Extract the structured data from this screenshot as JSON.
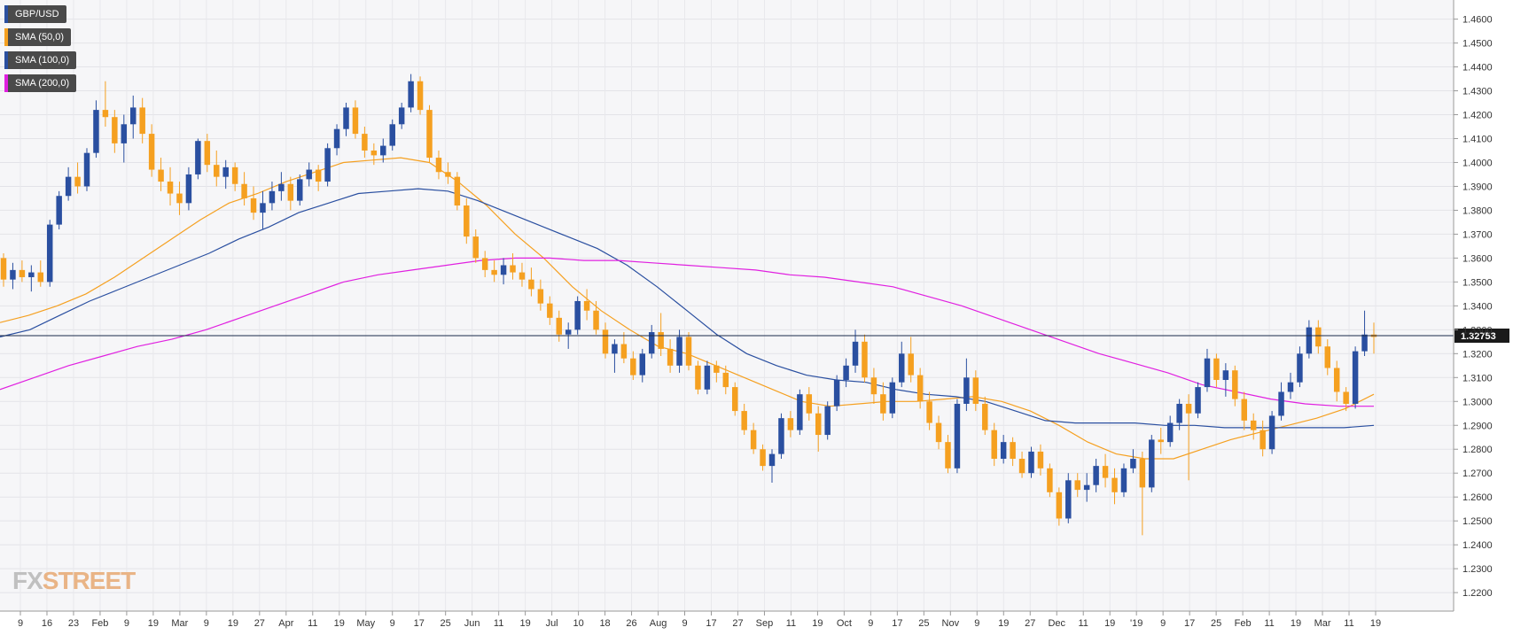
{
  "watermark": {
    "fx": "FX",
    "street": "STREET"
  },
  "legend": [
    {
      "label": "GBP/USD",
      "color": "#2a4fa0"
    },
    {
      "label": "SMA (50,0)",
      "color": "#f5a020"
    },
    {
      "label": "SMA (100,0)",
      "color": "#2a4fa0"
    },
    {
      "label": "SMA (200,0)",
      "color": "#e020e0"
    }
  ],
  "chart_data": {
    "type": "candlestick",
    "series": [
      {
        "name": "GBP/USD",
        "ohlc": [
          [
            1.36,
            1.362,
            1.348,
            1.351
          ],
          [
            1.351,
            1.358,
            1.347,
            1.355
          ],
          [
            1.355,
            1.359,
            1.35,
            1.352
          ],
          [
            1.352,
            1.357,
            1.346,
            1.354
          ],
          [
            1.354,
            1.359,
            1.348,
            1.35
          ],
          [
            1.35,
            1.376,
            1.348,
            1.374
          ],
          [
            1.374,
            1.388,
            1.372,
            1.386
          ],
          [
            1.386,
            1.398,
            1.384,
            1.394
          ],
          [
            1.394,
            1.4,
            1.387,
            1.39
          ],
          [
            1.39,
            1.406,
            1.388,
            1.404
          ],
          [
            1.404,
            1.426,
            1.402,
            1.422
          ],
          [
            1.422,
            1.434,
            1.415,
            1.419
          ],
          [
            1.419,
            1.422,
            1.404,
            1.408
          ],
          [
            1.408,
            1.42,
            1.4,
            1.416
          ],
          [
            1.416,
            1.428,
            1.41,
            1.423
          ],
          [
            1.423,
            1.427,
            1.408,
            1.412
          ],
          [
            1.412,
            1.416,
            1.394,
            1.397
          ],
          [
            1.397,
            1.402,
            1.388,
            1.392
          ],
          [
            1.392,
            1.398,
            1.382,
            1.387
          ],
          [
            1.387,
            1.392,
            1.378,
            1.383
          ],
          [
            1.383,
            1.398,
            1.38,
            1.395
          ],
          [
            1.395,
            1.41,
            1.393,
            1.409
          ],
          [
            1.409,
            1.412,
            1.396,
            1.399
          ],
          [
            1.399,
            1.405,
            1.39,
            1.394
          ],
          [
            1.394,
            1.401,
            1.389,
            1.398
          ],
          [
            1.398,
            1.4,
            1.388,
            1.391
          ],
          [
            1.391,
            1.396,
            1.382,
            1.385
          ],
          [
            1.385,
            1.39,
            1.376,
            1.379
          ],
          [
            1.379,
            1.388,
            1.372,
            1.383
          ],
          [
            1.383,
            1.392,
            1.38,
            1.388
          ],
          [
            1.388,
            1.396,
            1.384,
            1.391
          ],
          [
            1.391,
            1.394,
            1.38,
            1.384
          ],
          [
            1.384,
            1.395,
            1.382,
            1.393
          ],
          [
            1.393,
            1.4,
            1.39,
            1.397
          ],
          [
            1.397,
            1.399,
            1.388,
            1.392
          ],
          [
            1.392,
            1.408,
            1.39,
            1.406
          ],
          [
            1.406,
            1.416,
            1.403,
            1.414
          ],
          [
            1.414,
            1.425,
            1.411,
            1.423
          ],
          [
            1.423,
            1.426,
            1.41,
            1.412
          ],
          [
            1.412,
            1.415,
            1.402,
            1.405
          ],
          [
            1.405,
            1.408,
            1.399,
            1.403
          ],
          [
            1.403,
            1.41,
            1.4,
            1.407
          ],
          [
            1.407,
            1.418,
            1.405,
            1.416
          ],
          [
            1.416,
            1.425,
            1.414,
            1.423
          ],
          [
            1.423,
            1.437,
            1.421,
            1.434
          ],
          [
            1.434,
            1.436,
            1.42,
            1.422
          ],
          [
            1.422,
            1.424,
            1.4,
            1.402
          ],
          [
            1.402,
            1.405,
            1.393,
            1.396
          ],
          [
            1.396,
            1.4,
            1.391,
            1.394
          ],
          [
            1.394,
            1.396,
            1.38,
            1.382
          ],
          [
            1.382,
            1.385,
            1.366,
            1.369
          ],
          [
            1.369,
            1.372,
            1.358,
            1.36
          ],
          [
            1.36,
            1.363,
            1.352,
            1.355
          ],
          [
            1.355,
            1.359,
            1.35,
            1.353
          ],
          [
            1.353,
            1.36,
            1.349,
            1.357
          ],
          [
            1.357,
            1.362,
            1.351,
            1.354
          ],
          [
            1.354,
            1.358,
            1.348,
            1.351
          ],
          [
            1.351,
            1.356,
            1.344,
            1.347
          ],
          [
            1.347,
            1.351,
            1.338,
            1.341
          ],
          [
            1.341,
            1.344,
            1.332,
            1.335
          ],
          [
            1.335,
            1.338,
            1.325,
            1.328
          ],
          [
            1.328,
            1.333,
            1.322,
            1.33
          ],
          [
            1.33,
            1.344,
            1.328,
            1.342
          ],
          [
            1.342,
            1.347,
            1.334,
            1.338
          ],
          [
            1.338,
            1.342,
            1.328,
            1.33
          ],
          [
            1.33,
            1.333,
            1.318,
            1.32
          ],
          [
            1.32,
            1.326,
            1.312,
            1.324
          ],
          [
            1.324,
            1.329,
            1.316,
            1.318
          ],
          [
            1.318,
            1.321,
            1.309,
            1.311
          ],
          [
            1.311,
            1.322,
            1.308,
            1.32
          ],
          [
            1.32,
            1.332,
            1.318,
            1.329
          ],
          [
            1.329,
            1.337,
            1.319,
            1.322
          ],
          [
            1.322,
            1.326,
            1.312,
            1.315
          ],
          [
            1.315,
            1.33,
            1.312,
            1.327
          ],
          [
            1.327,
            1.329,
            1.313,
            1.315
          ],
          [
            1.315,
            1.317,
            1.303,
            1.305
          ],
          [
            1.305,
            1.317,
            1.303,
            1.315
          ],
          [
            1.315,
            1.317,
            1.308,
            1.312
          ],
          [
            1.312,
            1.315,
            1.303,
            1.306
          ],
          [
            1.306,
            1.308,
            1.294,
            1.296
          ],
          [
            1.296,
            1.299,
            1.286,
            1.288
          ],
          [
            1.288,
            1.291,
            1.278,
            1.28
          ],
          [
            1.28,
            1.282,
            1.271,
            1.273
          ],
          [
            1.273,
            1.28,
            1.266,
            1.278
          ],
          [
            1.278,
            1.295,
            1.276,
            1.293
          ],
          [
            1.293,
            1.296,
            1.285,
            1.288
          ],
          [
            1.288,
            1.305,
            1.286,
            1.303
          ],
          [
            1.303,
            1.306,
            1.292,
            1.295
          ],
          [
            1.295,
            1.298,
            1.279,
            1.286
          ],
          [
            1.286,
            1.3,
            1.284,
            1.298
          ],
          [
            1.298,
            1.311,
            1.296,
            1.309
          ],
          [
            1.309,
            1.318,
            1.306,
            1.315
          ],
          [
            1.315,
            1.33,
            1.312,
            1.325
          ],
          [
            1.325,
            1.328,
            1.308,
            1.31
          ],
          [
            1.31,
            1.314,
            1.299,
            1.303
          ],
          [
            1.303,
            1.308,
            1.292,
            1.295
          ],
          [
            1.295,
            1.31,
            1.293,
            1.308
          ],
          [
            1.308,
            1.325,
            1.306,
            1.32
          ],
          [
            1.32,
            1.327,
            1.308,
            1.311
          ],
          [
            1.311,
            1.314,
            1.297,
            1.3
          ],
          [
            1.3,
            1.304,
            1.288,
            1.291
          ],
          [
            1.291,
            1.294,
            1.28,
            1.283
          ],
          [
            1.283,
            1.286,
            1.27,
            1.272
          ],
          [
            1.272,
            1.301,
            1.27,
            1.299
          ],
          [
            1.299,
            1.318,
            1.296,
            1.31
          ],
          [
            1.31,
            1.313,
            1.296,
            1.299
          ],
          [
            1.299,
            1.302,
            1.286,
            1.288
          ],
          [
            1.288,
            1.291,
            1.273,
            1.276
          ],
          [
            1.276,
            1.286,
            1.274,
            1.283
          ],
          [
            1.283,
            1.285,
            1.273,
            1.276
          ],
          [
            1.276,
            1.279,
            1.268,
            1.27
          ],
          [
            1.27,
            1.281,
            1.268,
            1.279
          ],
          [
            1.279,
            1.282,
            1.269,
            1.272
          ],
          [
            1.272,
            1.274,
            1.26,
            1.262
          ],
          [
            1.262,
            1.264,
            1.248,
            1.251
          ],
          [
            1.251,
            1.27,
            1.249,
            1.267
          ],
          [
            1.267,
            1.27,
            1.26,
            1.263
          ],
          [
            1.263,
            1.27,
            1.258,
            1.265
          ],
          [
            1.265,
            1.276,
            1.262,
            1.273
          ],
          [
            1.273,
            1.278,
            1.264,
            1.268
          ],
          [
            1.268,
            1.272,
            1.257,
            1.262
          ],
          [
            1.262,
            1.274,
            1.26,
            1.272
          ],
          [
            1.272,
            1.28,
            1.27,
            1.276
          ],
          [
            1.276,
            1.279,
            1.244,
            1.264
          ],
          [
            1.264,
            1.286,
            1.262,
            1.284
          ],
          [
            1.284,
            1.289,
            1.278,
            1.283
          ],
          [
            1.283,
            1.294,
            1.281,
            1.291
          ],
          [
            1.291,
            1.301,
            1.288,
            1.299
          ],
          [
            1.299,
            1.303,
            1.267,
            1.295
          ],
          [
            1.295,
            1.308,
            1.293,
            1.306
          ],
          [
            1.306,
            1.322,
            1.304,
            1.318
          ],
          [
            1.318,
            1.32,
            1.306,
            1.309
          ],
          [
            1.309,
            1.316,
            1.302,
            1.313
          ],
          [
            1.313,
            1.315,
            1.298,
            1.301
          ],
          [
            1.301,
            1.304,
            1.288,
            1.292
          ],
          [
            1.292,
            1.295,
            1.284,
            1.288
          ],
          [
            1.288,
            1.292,
            1.277,
            1.28
          ],
          [
            1.28,
            1.296,
            1.278,
            1.294
          ],
          [
            1.294,
            1.308,
            1.292,
            1.304
          ],
          [
            1.304,
            1.312,
            1.301,
            1.308
          ],
          [
            1.308,
            1.323,
            1.306,
            1.32
          ],
          [
            1.32,
            1.334,
            1.318,
            1.331
          ],
          [
            1.331,
            1.334,
            1.32,
            1.323
          ],
          [
            1.323,
            1.326,
            1.311,
            1.314
          ],
          [
            1.314,
            1.317,
            1.3,
            1.304
          ],
          [
            1.304,
            1.306,
            1.296,
            1.299
          ],
          [
            1.299,
            1.323,
            1.297,
            1.321
          ],
          [
            1.321,
            1.338,
            1.319,
            1.328
          ],
          [
            1.328,
            1.333,
            1.32,
            1.327
          ]
        ]
      },
      {
        "name": "SMA (50,0)",
        "values": [
          1.333,
          1.336,
          1.34,
          1.345,
          1.352,
          1.36,
          1.368,
          1.376,
          1.383,
          1.387,
          1.392,
          1.396,
          1.4,
          1.401,
          1.402,
          1.4,
          1.392,
          1.382,
          1.37,
          1.36,
          1.348,
          1.338,
          1.33,
          1.323,
          1.32,
          1.315,
          1.31,
          1.305,
          1.3,
          1.298,
          1.299,
          1.3,
          1.3,
          1.301,
          1.302,
          1.3,
          1.296,
          1.29,
          1.283,
          1.278,
          1.276,
          1.276,
          1.28,
          1.284,
          1.287,
          1.29,
          1.293,
          1.297,
          1.303
        ]
      },
      {
        "name": "SMA (100,0)",
        "values": [
          1.327,
          1.33,
          1.336,
          1.342,
          1.347,
          1.352,
          1.357,
          1.362,
          1.368,
          1.373,
          1.379,
          1.383,
          1.387,
          1.388,
          1.389,
          1.388,
          1.384,
          1.379,
          1.374,
          1.369,
          1.364,
          1.357,
          1.348,
          1.338,
          1.328,
          1.32,
          1.315,
          1.311,
          1.309,
          1.308,
          1.305,
          1.303,
          1.302,
          1.3,
          1.296,
          1.292,
          1.291,
          1.291,
          1.291,
          1.29,
          1.29,
          1.289,
          1.289,
          1.289,
          1.289,
          1.289,
          1.29
        ]
      },
      {
        "name": "SMA (200,0)",
        "values": [
          1.305,
          1.31,
          1.315,
          1.319,
          1.323,
          1.326,
          1.33,
          1.335,
          1.34,
          1.345,
          1.35,
          1.353,
          1.355,
          1.357,
          1.359,
          1.36,
          1.36,
          1.359,
          1.359,
          1.358,
          1.357,
          1.356,
          1.355,
          1.353,
          1.352,
          1.35,
          1.348,
          1.344,
          1.34,
          1.335,
          1.33,
          1.325,
          1.32,
          1.316,
          1.312,
          1.307,
          1.304,
          1.301,
          1.299,
          1.298,
          1.298
        ]
      }
    ],
    "y_ticks": [
      "1.4600",
      "1.4500",
      "1.4400",
      "1.4300",
      "1.4200",
      "1.4100",
      "1.4000",
      "1.3900",
      "1.3800",
      "1.3700",
      "1.3600",
      "1.3500",
      "1.3400",
      "1.3300",
      "1.3200",
      "1.3100",
      "1.3000",
      "1.2900",
      "1.2800",
      "1.2700",
      "1.2600",
      "1.2500",
      "1.2400",
      "1.2300",
      "1.2200"
    ],
    "ylim": [
      1.213,
      1.468
    ],
    "x_ticks": [
      "9",
      "16",
      "23",
      "Feb",
      "9",
      "19",
      "Mar",
      "9",
      "19",
      "27",
      "Apr",
      "11",
      "19",
      "May",
      "9",
      "17",
      "25",
      "Jun",
      "11",
      "19",
      "Jul",
      "10",
      "18",
      "26",
      "Aug",
      "9",
      "17",
      "27",
      "Sep",
      "11",
      "19",
      "Oct",
      "9",
      "17",
      "25",
      "Nov",
      "9",
      "19",
      "27",
      "Dec",
      "11",
      "19",
      "'19",
      "9",
      "17",
      "25",
      "Feb",
      "11",
      "19",
      "Mar",
      "11",
      "19"
    ],
    "current_price": "1.32753",
    "current_value": 1.32753,
    "grid": true
  }
}
